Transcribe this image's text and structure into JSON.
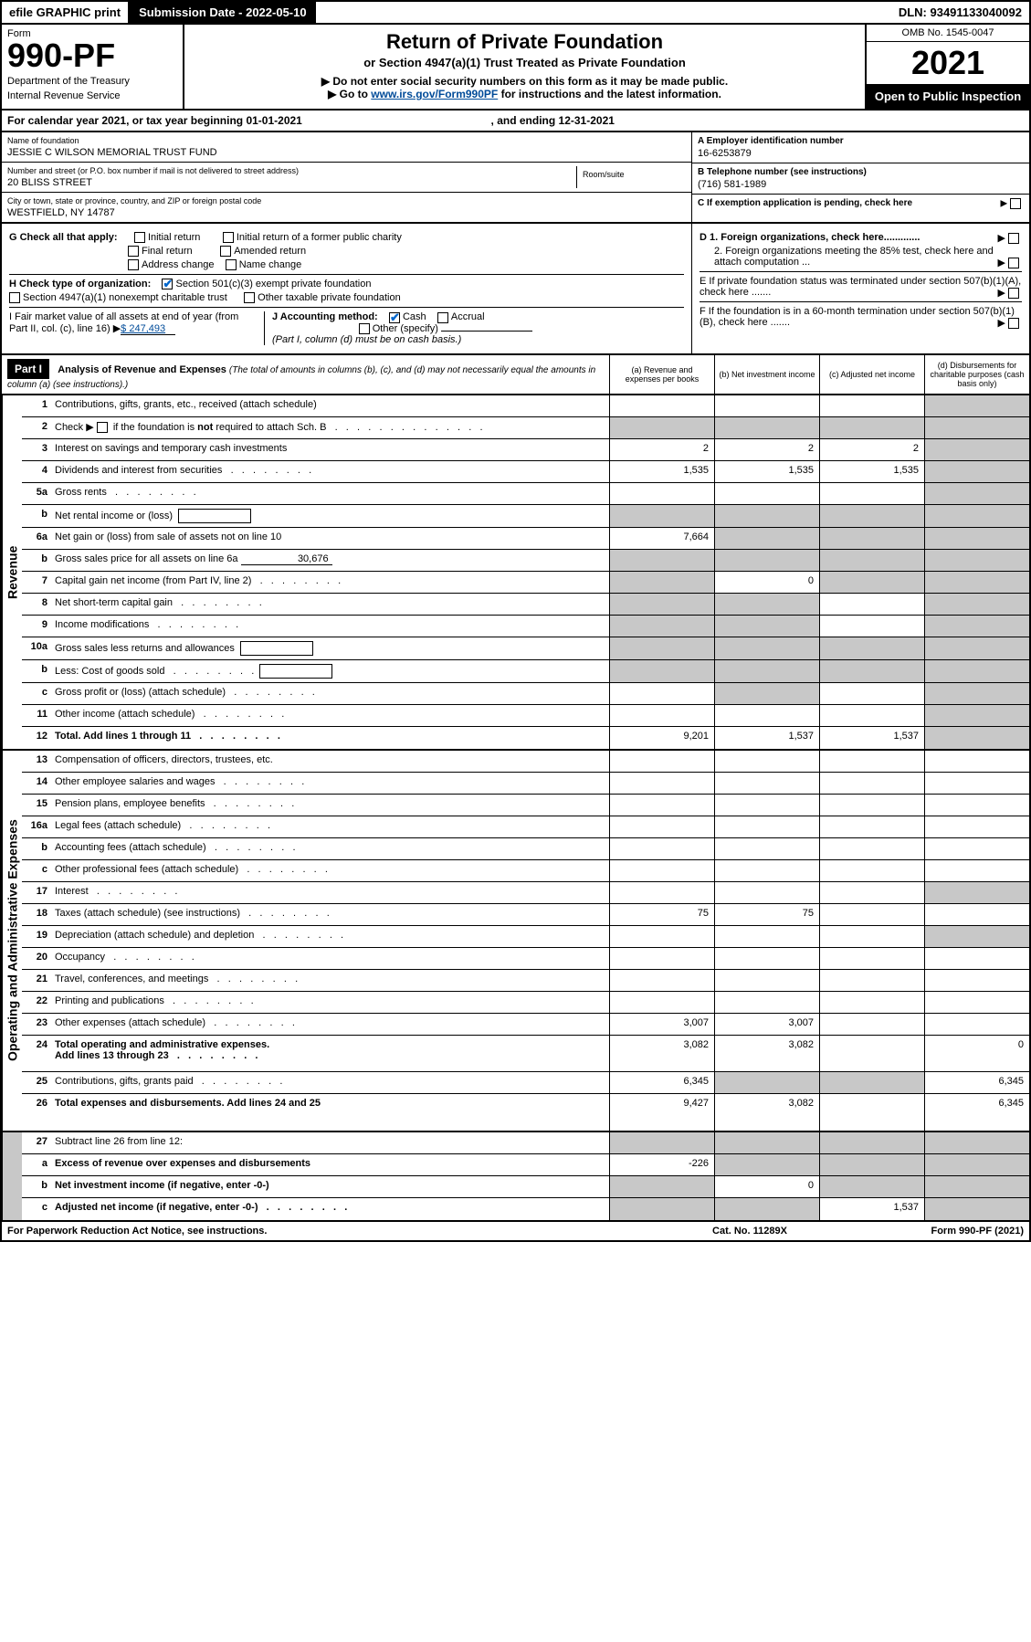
{
  "topbar": {
    "efile": "efile GRAPHIC print",
    "subdate_label": "Submission Date - 2022-05-10",
    "dln": "DLN: 93491133040092"
  },
  "header": {
    "form_label": "Form",
    "form_number": "990-PF",
    "dept": "Department of the Treasury",
    "irs": "Internal Revenue Service",
    "title": "Return of Private Foundation",
    "sub1": "or Section 4947(a)(1) Trust Treated as Private Foundation",
    "sub2": "▶ Do not enter social security numbers on this form as it may be made public.",
    "sub3_pre": "▶ Go to ",
    "sub3_link": "www.irs.gov/Form990PF",
    "sub3_post": " for instructions and the latest information.",
    "omb": "OMB No. 1545-0047",
    "year": "2021",
    "open": "Open to Public Inspection"
  },
  "calyear": {
    "text_pre": "For calendar year 2021, or tax year beginning ",
    "begin": "01-01-2021",
    "text_mid": " , and ending ",
    "end": "12-31-2021"
  },
  "info": {
    "name_lbl": "Name of foundation",
    "name": "JESSIE C WILSON MEMORIAL TRUST FUND",
    "addr_lbl": "Number and street (or P.O. box number if mail is not delivered to street address)",
    "addr": "20 BLISS STREET",
    "room_lbl": "Room/suite",
    "room": "",
    "city_lbl": "City or town, state or province, country, and ZIP or foreign postal code",
    "city": "WESTFIELD, NY  14787",
    "ein_lbl": "A Employer identification number",
    "ein": "16-6253879",
    "tel_lbl": "B Telephone number (see instructions)",
    "tel": "(716) 581-1989",
    "c_lbl": "C If exemption application is pending, check here",
    "d1": "D 1. Foreign organizations, check here.............",
    "d2": "2. Foreign organizations meeting the 85% test, check here and attach computation ...",
    "e_lbl": "E  If private foundation status was terminated under section 507(b)(1)(A), check here .......",
    "f_lbl": "F  If the foundation is in a 60-month termination under section 507(b)(1)(B), check here ......."
  },
  "checks": {
    "g_lbl": "G Check all that apply:",
    "g_initial": "Initial return",
    "g_final": "Final return",
    "g_addr": "Address change",
    "g_initial_former": "Initial return of a former public charity",
    "g_amended": "Amended return",
    "g_name": "Name change",
    "h_lbl": "H Check type of organization:",
    "h_501c3": "Section 501(c)(3) exempt private foundation",
    "h_4947": "Section 4947(a)(1) nonexempt charitable trust",
    "h_other": "Other taxable private foundation",
    "i_lbl": "I Fair market value of all assets at end of year (from Part II, col. (c), line 16)",
    "i_val": "$  247,493",
    "j_lbl": "J Accounting method:",
    "j_cash": "Cash",
    "j_accrual": "Accrual",
    "j_other": "Other (specify)",
    "j_note": "(Part I, column (d) must be on cash basis.)"
  },
  "part1": {
    "label": "Part I",
    "title": "Analysis of Revenue and Expenses",
    "note": "(The total of amounts in columns (b), (c), and (d) may not necessarily equal the amounts in column (a) (see instructions).)",
    "col_a": "(a)  Revenue and expenses per books",
    "col_b": "(b)  Net investment income",
    "col_c": "(c)  Adjusted net income",
    "col_d": "(d)  Disbursements for charitable purposes (cash basis only)"
  },
  "sections": {
    "revenue": "Revenue",
    "expenses": "Operating and Administrative Expenses"
  },
  "rows": [
    {
      "n": "1",
      "d": "shaded",
      "a": "",
      "b": "",
      "c": "",
      "sec": "rev"
    },
    {
      "n": "2",
      "d": "shaded",
      "a": "shaded",
      "b": "shaded",
      "c": "shaded",
      "sec": "rev",
      "dots": true,
      "notreq": true
    },
    {
      "n": "3",
      "d": "shaded",
      "a": "2",
      "b": "2",
      "c": "2",
      "sec": "rev"
    },
    {
      "n": "4",
      "d": "shaded",
      "a": "1,535",
      "b": "1,535",
      "c": "1,535",
      "sec": "rev",
      "dots": true
    },
    {
      "n": "5a",
      "d": "shaded",
      "a": "",
      "b": "",
      "c": "",
      "sec": "rev",
      "dots": true
    },
    {
      "n": "b",
      "d": "shaded",
      "a": "shaded",
      "b": "shaded",
      "c": "shaded",
      "sec": "rev",
      "box": true
    },
    {
      "n": "6a",
      "d": "shaded",
      "a": "7,664",
      "b": "shaded",
      "c": "shaded",
      "sec": "rev"
    },
    {
      "n": "b",
      "d": "shaded",
      "a": "shaded",
      "b": "shaded",
      "c": "shaded",
      "sec": "rev",
      "inline": "30,676"
    },
    {
      "n": "7",
      "d": "shaded",
      "a": "shaded",
      "b": "0",
      "c": "shaded",
      "sec": "rev",
      "dots": true
    },
    {
      "n": "8",
      "d": "shaded",
      "a": "shaded",
      "b": "shaded",
      "c": "",
      "sec": "rev",
      "dots": true
    },
    {
      "n": "9",
      "d": "shaded",
      "a": "shaded",
      "b": "shaded",
      "c": "",
      "sec": "rev",
      "dots": true
    },
    {
      "n": "10a",
      "d": "shaded",
      "a": "shaded",
      "b": "shaded",
      "c": "shaded",
      "sec": "rev",
      "box": true
    },
    {
      "n": "b",
      "d": "shaded",
      "a": "shaded",
      "b": "shaded",
      "c": "shaded",
      "sec": "rev",
      "box": true,
      "dots": true
    },
    {
      "n": "c",
      "d": "shaded",
      "a": "",
      "b": "shaded",
      "c": "",
      "sec": "rev",
      "dots": true
    },
    {
      "n": "11",
      "d": "shaded",
      "a": "",
      "b": "",
      "c": "",
      "sec": "rev",
      "dots": true
    },
    {
      "n": "12",
      "d": "shaded",
      "a": "9,201",
      "b": "1,537",
      "c": "1,537",
      "sec": "rev",
      "bold": true,
      "dots": true
    },
    {
      "n": "13",
      "d": "",
      "a": "",
      "b": "",
      "c": "",
      "sec": "exp"
    },
    {
      "n": "14",
      "d": "",
      "a": "",
      "b": "",
      "c": "",
      "sec": "exp",
      "dots": true
    },
    {
      "n": "15",
      "d": "",
      "a": "",
      "b": "",
      "c": "",
      "sec": "exp",
      "dots": true
    },
    {
      "n": "16a",
      "d": "",
      "a": "",
      "b": "",
      "c": "",
      "sec": "exp",
      "dots": true
    },
    {
      "n": "b",
      "d": "",
      "a": "",
      "b": "",
      "c": "",
      "sec": "exp",
      "dots": true
    },
    {
      "n": "c",
      "d": "",
      "a": "",
      "b": "",
      "c": "",
      "sec": "exp",
      "dots": true
    },
    {
      "n": "17",
      "d": "shaded",
      "a": "",
      "b": "",
      "c": "",
      "sec": "exp",
      "dots": true
    },
    {
      "n": "18",
      "d": "",
      "a": "75",
      "b": "75",
      "c": "",
      "sec": "exp",
      "dots": true
    },
    {
      "n": "19",
      "d": "shaded",
      "a": "",
      "b": "",
      "c": "",
      "sec": "exp",
      "dots": true
    },
    {
      "n": "20",
      "d": "",
      "a": "",
      "b": "",
      "c": "",
      "sec": "exp",
      "dots": true
    },
    {
      "n": "21",
      "d": "",
      "a": "",
      "b": "",
      "c": "",
      "sec": "exp",
      "dots": true
    },
    {
      "n": "22",
      "d": "",
      "a": "",
      "b": "",
      "c": "",
      "sec": "exp",
      "dots": true
    },
    {
      "n": "23",
      "d": "",
      "a": "3,007",
      "b": "3,007",
      "c": "",
      "sec": "exp",
      "dots": true
    },
    {
      "n": "24",
      "d": "0",
      "a": "3,082",
      "b": "3,082",
      "c": "",
      "sec": "exp",
      "bold": true,
      "dots": true,
      "tall": true
    },
    {
      "n": "25",
      "d": "6,345",
      "a": "6,345",
      "b": "shaded",
      "c": "shaded",
      "sec": "exp",
      "dots": true
    },
    {
      "n": "26",
      "d": "6,345",
      "a": "9,427",
      "b": "3,082",
      "c": "",
      "sec": "exp",
      "bold": true,
      "tall": true
    },
    {
      "n": "27",
      "d": "shaded",
      "a": "shaded",
      "b": "shaded",
      "c": "shaded",
      "sec": "end"
    },
    {
      "n": "a",
      "d": "shaded",
      "a": "-226",
      "b": "shaded",
      "c": "shaded",
      "sec": "end",
      "bold": true
    },
    {
      "n": "b",
      "d": "shaded",
      "a": "shaded",
      "b": "0",
      "c": "shaded",
      "sec": "end",
      "bold": true
    },
    {
      "n": "c",
      "d": "shaded",
      "a": "shaded",
      "b": "shaded",
      "c": "1,537",
      "sec": "end",
      "bold": true,
      "dots": true
    }
  ],
  "footer": {
    "left": "For Paperwork Reduction Act Notice, see instructions.",
    "mid": "Cat. No. 11289X",
    "right": "Form 990-PF (2021)"
  },
  "colors": {
    "black": "#000000",
    "white": "#ffffff",
    "shaded": "#c8c8c8",
    "link": "#004b99",
    "check": "#0066cc"
  }
}
